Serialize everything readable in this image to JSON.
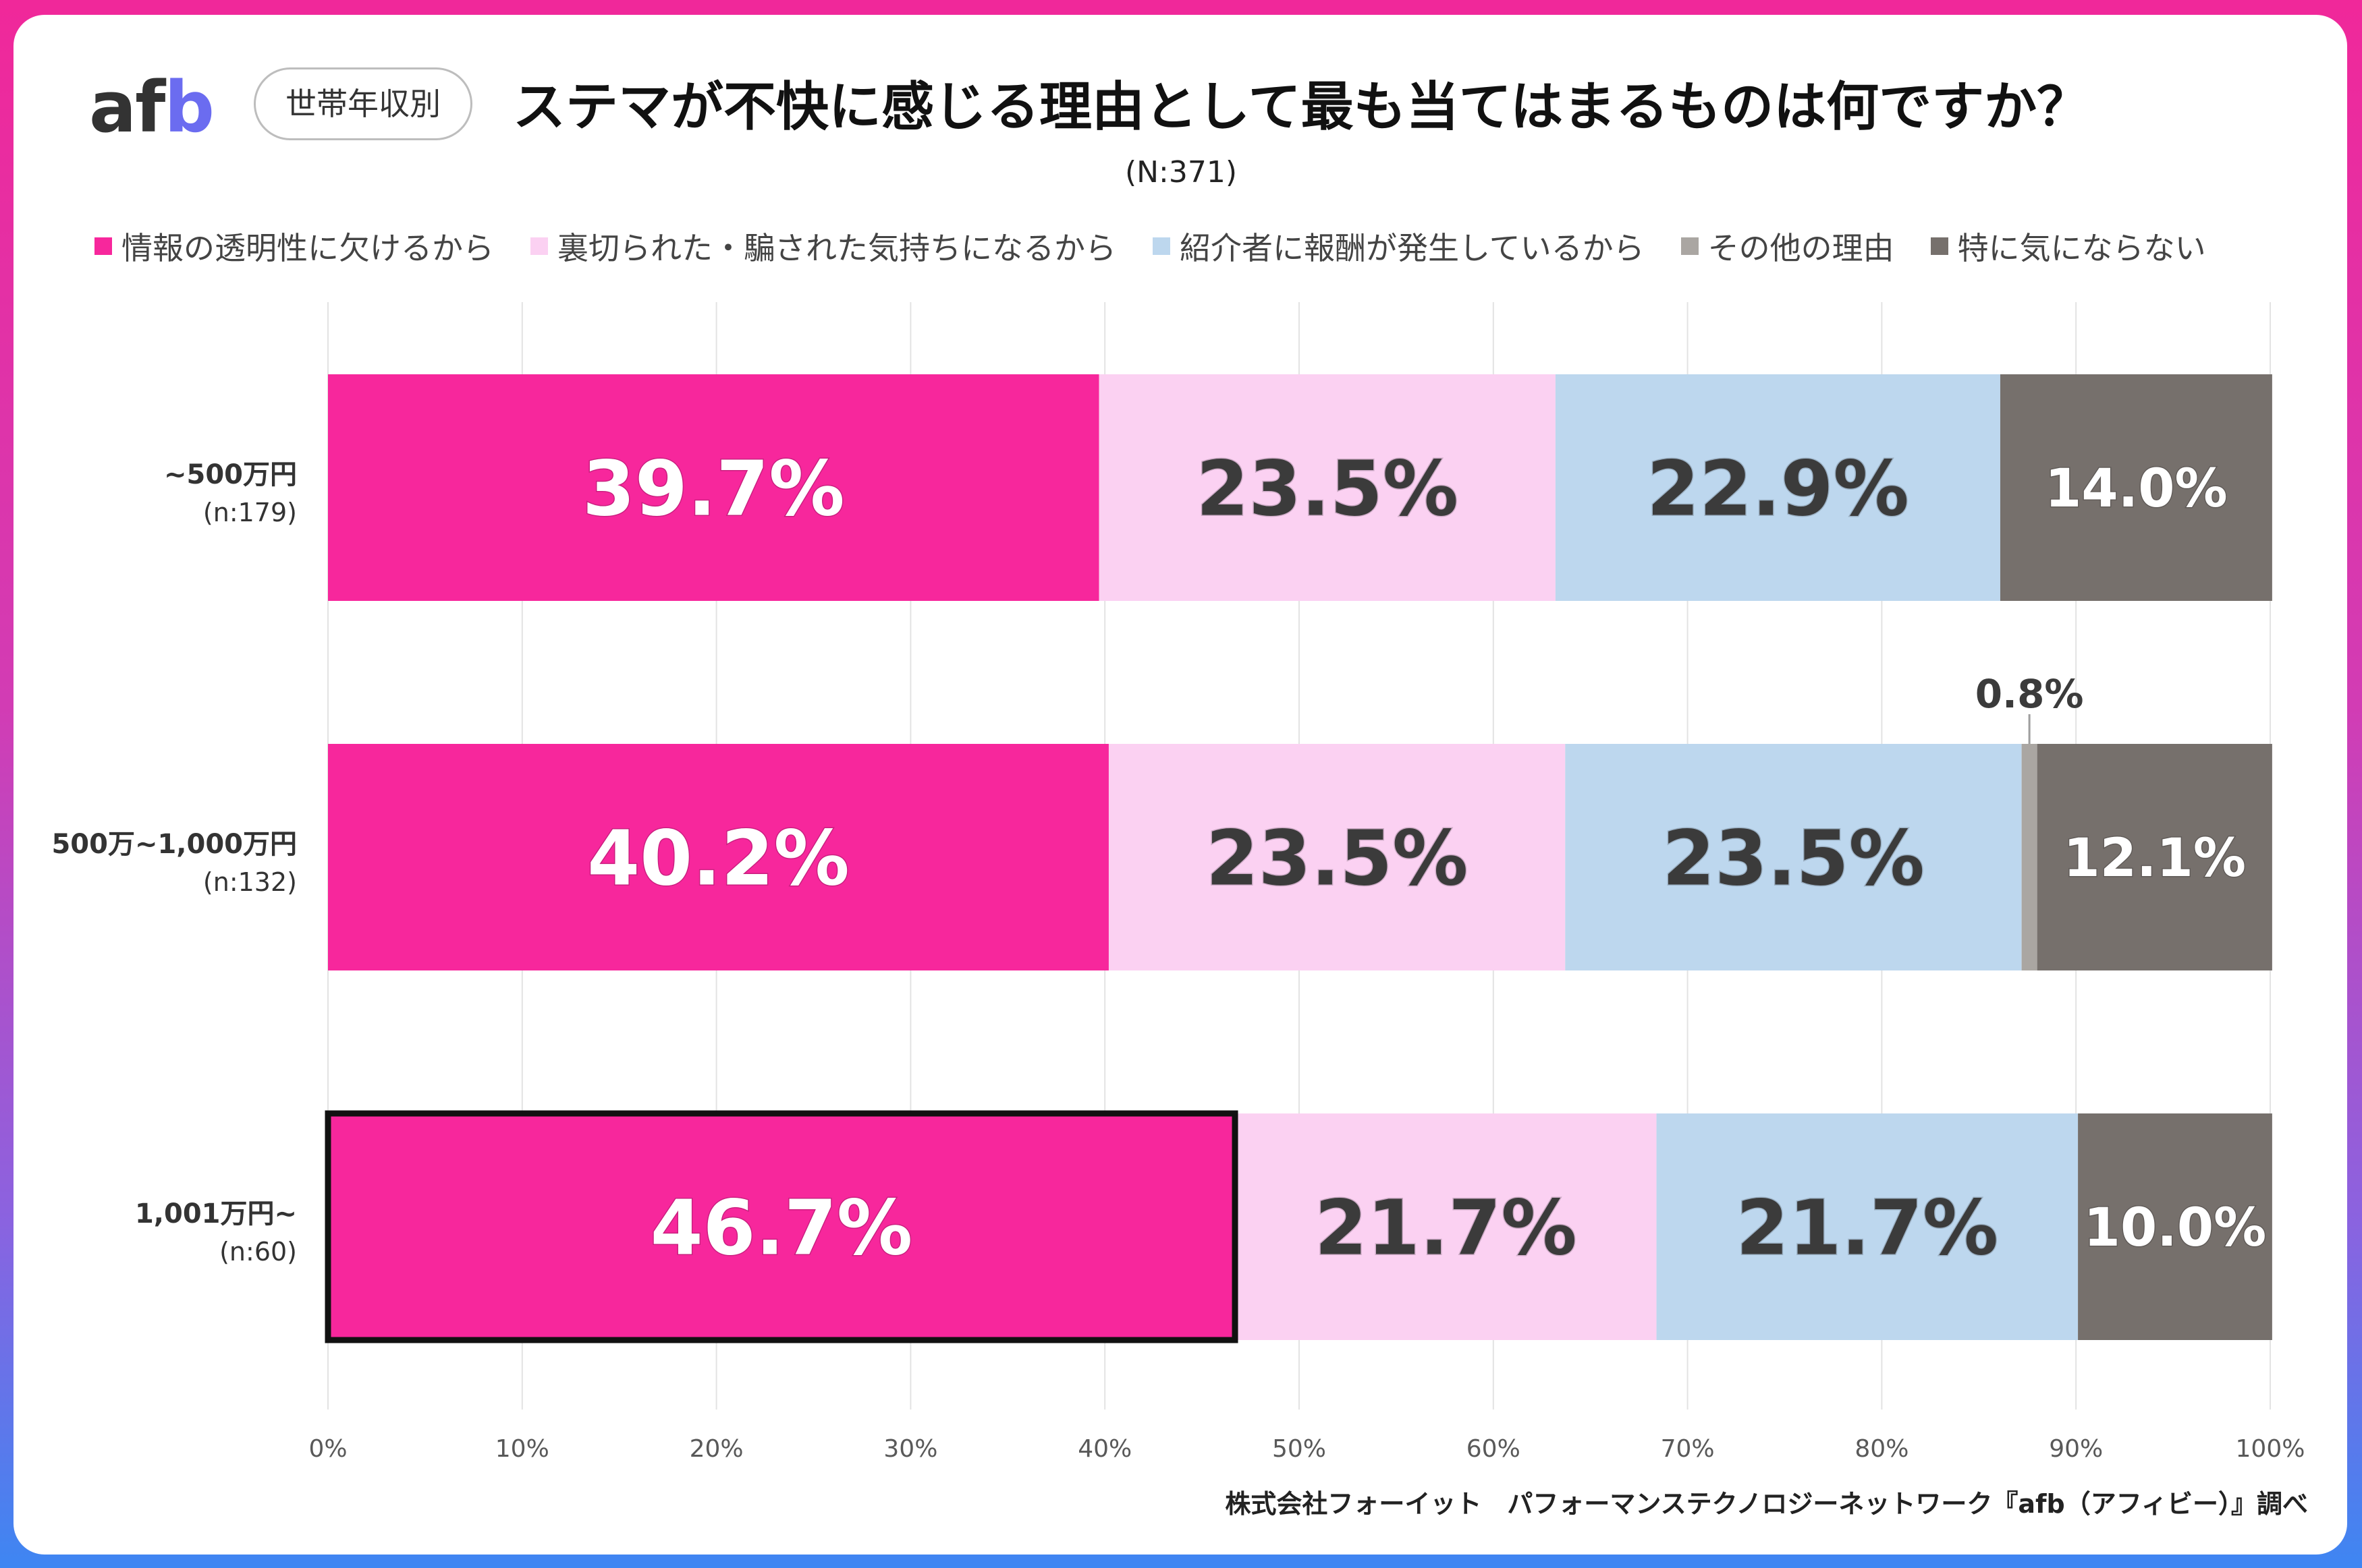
{
  "header": {
    "logo_text": "afb",
    "tag": "世帯年収別",
    "title": "ステマが不快に感じる理由として最も当てはまるものは何ですか？",
    "subtitle": "(N:371)"
  },
  "footer": {
    "credit": "株式会社フォーイット　パフォーマンステクノロジーネットワーク『afb（アフィビー）』調べ"
  },
  "colors": {
    "brand_magenta": "#f7279c",
    "brand_blue": "#6b6cf0"
  },
  "chart_data": {
    "type": "bar",
    "orientation": "horizontal",
    "stacked": true,
    "xlim": [
      0,
      100
    ],
    "x_ticks": [
      "0%",
      "10%",
      "20%",
      "30%",
      "40%",
      "50%",
      "60%",
      "70%",
      "80%",
      "90%",
      "100%"
    ],
    "grid": true,
    "legend_position": "top",
    "categories": [
      {
        "label": "~500万円",
        "n": "(n:179)"
      },
      {
        "label": "500万~1,000万円",
        "n": "(n:132)"
      },
      {
        "label": "1,001万円~",
        "n": "(n:60)"
      }
    ],
    "highlight": {
      "category_index": 2,
      "series_index": 0
    },
    "series": [
      {
        "name": "情報の透明性に欠けるから",
        "color": "#f7279c",
        "label_color": "#ffffff",
        "values": [
          39.7,
          40.2,
          46.7
        ]
      },
      {
        "name": "裏切られた・騙された気持ちになるから",
        "color": "#fbd1f2",
        "label_color": "#3b3b3b",
        "values": [
          23.5,
          23.5,
          21.7
        ]
      },
      {
        "name": "紹介者に報酬が発生しているから",
        "color": "#bdd7ee",
        "label_color": "#3b3b3b",
        "values": [
          22.9,
          23.5,
          21.7
        ]
      },
      {
        "name": "その他の理由",
        "color": "#aaa6a2",
        "label_color": "#3b3b3b",
        "values": [
          0,
          0.8,
          0
        ]
      },
      {
        "name": "特に気にならない",
        "color": "#76706c",
        "label_color": "#ffffff",
        "values": [
          14.0,
          12.1,
          10.0
        ]
      }
    ]
  }
}
